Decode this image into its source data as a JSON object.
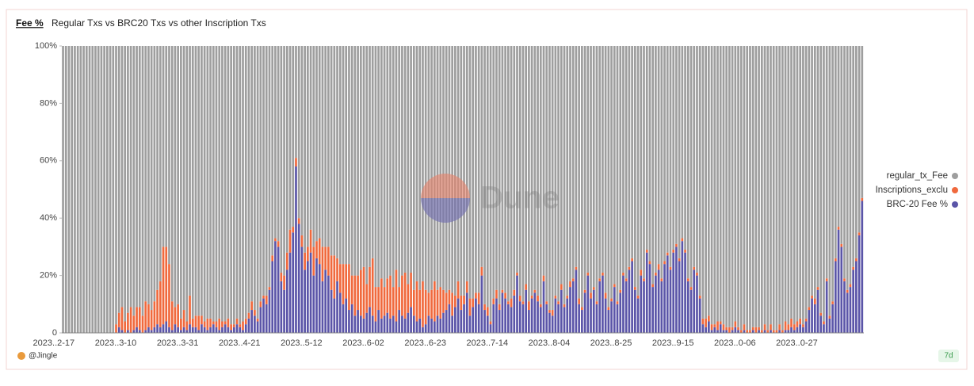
{
  "chart_data": {
    "type": "stacked_bar_100",
    "title": "Fee %",
    "subtitle": "Regular Txs vs BRC20 Txs vs other Inscription Txs",
    "author": "@Jingle",
    "period": "7d",
    "watermark": "Dune",
    "ylim": [
      0,
      100
    ],
    "yticks": [
      0,
      {
        "value": 20,
        "label": "20%"
      },
      {
        "value": 40,
        "label": "40%"
      },
      {
        "value": 60,
        "label": "60%"
      },
      {
        "value": 80,
        "label": "80%"
      },
      {
        "value": 100,
        "label": "100%"
      }
    ],
    "categories": [
      "2023..2-17",
      null,
      null,
      null,
      null,
      null,
      null,
      null,
      null,
      null,
      null,
      null,
      null,
      null,
      null,
      null,
      null,
      null,
      null,
      null,
      null,
      "2023..3-10",
      null,
      null,
      null,
      null,
      null,
      null,
      null,
      null,
      null,
      null,
      null,
      null,
      null,
      null,
      null,
      null,
      null,
      null,
      null,
      null,
      "2023..3-31",
      null,
      null,
      null,
      null,
      null,
      null,
      null,
      null,
      null,
      null,
      null,
      null,
      null,
      null,
      null,
      null,
      null,
      null,
      null,
      null,
      "2023..4-21",
      null,
      null,
      null,
      null,
      null,
      null,
      null,
      null,
      null,
      null,
      null,
      null,
      null,
      null,
      null,
      null,
      null,
      null,
      null,
      null,
      "2023..5-12",
      null,
      null,
      null,
      null,
      null,
      null,
      null,
      null,
      null,
      null,
      null,
      null,
      null,
      null,
      null,
      null,
      null,
      null,
      null,
      null,
      "2023..6-02",
      null,
      null,
      null,
      null,
      null,
      null,
      null,
      null,
      null,
      null,
      null,
      null,
      null,
      null,
      null,
      null,
      null,
      null,
      null,
      null,
      "2023..6-23",
      null,
      null,
      null,
      null,
      null,
      null,
      null,
      null,
      null,
      null,
      null,
      null,
      null,
      null,
      null,
      null,
      null,
      null,
      null,
      null,
      "2023..7-14",
      null,
      null,
      null,
      null,
      null,
      null,
      null,
      null,
      null,
      null,
      null,
      null,
      null,
      null,
      null,
      null,
      null,
      null,
      null,
      null,
      "2023..8-04",
      null,
      null,
      null,
      null,
      null,
      null,
      null,
      null,
      null,
      null,
      null,
      null,
      null,
      null,
      null,
      null,
      null,
      null,
      null,
      null,
      "2023..8-25",
      null,
      null,
      null,
      null,
      null,
      null,
      null,
      null,
      null,
      null,
      null,
      null,
      null,
      null,
      null,
      null,
      null,
      null,
      null,
      null,
      "2023..9-15",
      null,
      null,
      null,
      null,
      null,
      null,
      null,
      null,
      null,
      null,
      null,
      null,
      null,
      null,
      null,
      null,
      null,
      null,
      null,
      null,
      "2023..0-06",
      null,
      null,
      null,
      null,
      null,
      null,
      null,
      null,
      null,
      null,
      null,
      null,
      null,
      null,
      null,
      null,
      null,
      null,
      null,
      null,
      "2023..0-27",
      null,
      null,
      null,
      null,
      null,
      null,
      null,
      null,
      null,
      null,
      null,
      null,
      null,
      null,
      null,
      null,
      null,
      null,
      null
    ],
    "series": [
      {
        "name": "regular_tx_Fee",
        "color": "#9e9e9e",
        "values": [
          100,
          100,
          100,
          100,
          100,
          100,
          100,
          100,
          100,
          100,
          100,
          100,
          100,
          100,
          100,
          100,
          100,
          100,
          97,
          93,
          91,
          96,
          93,
          91,
          94,
          91,
          91,
          94,
          89,
          90,
          92,
          89,
          85,
          82,
          70,
          70,
          76,
          89,
          91,
          90,
          95,
          92,
          96,
          87,
          95,
          94,
          94,
          94,
          96,
          95,
          95,
          96,
          96,
          95,
          96,
          96,
          95,
          97,
          97,
          95,
          97,
          96,
          95,
          93,
          89,
          92,
          95,
          89,
          87,
          87,
          84,
          73,
          67,
          68,
          79,
          80,
          72,
          64,
          63,
          39,
          60,
          66,
          72,
          70,
          64,
          70,
          68,
          67,
          70,
          70,
          70,
          73,
          73,
          74,
          76,
          76,
          76,
          76,
          80,
          80,
          80,
          78,
          77,
          83,
          77,
          74,
          84,
          84,
          81,
          84,
          81,
          80,
          84,
          78,
          84,
          80,
          79,
          83,
          79,
          85,
          82,
          85,
          82,
          85,
          86,
          85,
          82,
          85,
          84,
          85,
          86,
          85,
          86,
          87,
          82,
          87,
          87,
          82,
          88,
          88,
          86,
          86,
          77,
          90,
          91,
          96,
          88,
          85,
          90,
          85,
          86,
          89,
          88,
          85,
          79,
          87,
          89,
          83,
          89,
          87,
          85,
          87,
          90,
          80,
          89,
          92,
          92,
          87,
          89,
          83,
          90,
          87,
          82,
          81,
          77,
          88,
          91,
          85,
          79,
          86,
          84,
          89,
          81,
          79,
          86,
          91,
          88,
          83,
          89,
          85,
          79,
          81,
          77,
          74,
          84,
          87,
          78,
          81,
          71,
          75,
          83,
          79,
          76,
          81,
          75,
          72,
          77,
          71,
          69,
          74,
          67,
          71,
          81,
          84,
          77,
          79,
          87,
          95,
          95,
          94,
          97,
          97,
          96,
          96,
          97,
          98,
          98,
          98,
          96,
          98,
          99,
          97,
          99,
          99,
          98,
          98,
          98,
          99,
          97,
          99,
          97,
          99,
          99,
          97,
          99,
          96,
          97,
          95,
          97,
          96,
          95,
          97,
          95,
          91,
          87,
          88,
          84,
          93,
          96,
          81,
          94,
          89,
          74,
          63,
          69,
          81,
          85,
          83,
          77,
          74,
          65,
          53
        ]
      },
      {
        "name": "Inscriptions_exclu",
        "color": "#f0693d",
        "values": [
          0,
          0,
          0,
          0,
          0,
          0,
          0,
          0,
          0,
          0,
          0,
          0,
          0,
          0,
          0,
          0,
          0,
          0,
          3,
          5,
          8,
          4,
          6,
          9,
          5,
          7,
          8,
          6,
          10,
          8,
          7,
          9,
          12,
          16,
          27,
          26,
          22,
          10,
          6,
          8,
          4,
          6,
          3,
          10,
          3,
          4,
          5,
          3,
          2,
          4,
          3,
          1,
          2,
          4,
          2,
          1,
          3,
          2,
          1,
          2,
          1,
          3,
          2,
          2,
          3,
          2,
          1,
          2,
          1,
          3,
          1,
          2,
          1,
          2,
          3,
          5,
          6,
          8,
          2,
          3,
          2,
          4,
          6,
          5,
          8,
          10,
          6,
          9,
          12,
          8,
          10,
          12,
          15,
          8,
          10,
          14,
          12,
          16,
          10,
          14,
          12,
          16,
          18,
          10,
          14,
          20,
          12,
          8,
          14,
          10,
          12,
          15,
          10,
          18,
          8,
          14,
          16,
          10,
          12,
          9,
          14,
          10,
          16,
          12,
          8,
          10,
          14,
          9,
          11,
          8,
          6,
          5,
          8,
          4,
          6,
          5,
          3,
          4,
          6,
          3,
          2,
          4,
          3,
          2,
          3,
          1,
          2,
          3,
          2,
          1,
          2,
          1,
          3,
          2,
          1,
          2,
          1,
          2,
          3,
          1,
          1,
          2,
          1,
          2,
          1,
          1,
          2,
          1,
          1,
          2,
          1,
          1,
          2,
          1,
          1,
          2,
          1,
          1,
          1,
          2,
          1,
          1,
          1,
          1,
          2,
          1,
          1,
          1,
          1,
          1,
          1,
          1,
          1,
          1,
          1,
          1,
          2,
          1,
          1,
          1,
          1,
          1,
          2,
          1,
          1,
          1,
          1,
          1,
          1,
          1,
          1,
          1,
          1,
          1,
          1,
          1,
          1,
          2,
          3,
          2,
          2,
          1,
          3,
          1,
          2,
          1,
          2,
          1,
          2,
          1,
          1,
          2,
          1,
          1,
          1,
          2,
          1,
          1,
          2,
          1,
          2,
          1,
          1,
          2,
          1,
          3,
          2,
          3,
          2,
          2,
          2,
          1,
          1,
          1,
          1,
          2,
          1,
          1,
          1,
          1,
          1,
          1,
          1,
          1,
          1,
          1,
          1,
          1,
          1,
          1,
          1,
          1
        ]
      },
      {
        "name": "BRC-20 Fee %",
        "color": "#5b55a8",
        "values": [
          0,
          0,
          0,
          0,
          0,
          0,
          0,
          0,
          0,
          0,
          0,
          0,
          0,
          0,
          0,
          0,
          0,
          0,
          0,
          2,
          1,
          0,
          1,
          0,
          1,
          2,
          1,
          0,
          1,
          2,
          1,
          2,
          3,
          2,
          3,
          4,
          2,
          1,
          3,
          2,
          1,
          2,
          1,
          3,
          2,
          2,
          1,
          3,
          2,
          1,
          2,
          3,
          2,
          1,
          2,
          3,
          2,
          1,
          2,
          3,
          2,
          1,
          3,
          5,
          8,
          6,
          4,
          9,
          12,
          10,
          15,
          25,
          32,
          30,
          18,
          15,
          22,
          28,
          35,
          58,
          38,
          30,
          22,
          25,
          28,
          20,
          26,
          24,
          18,
          22,
          20,
          15,
          12,
          18,
          14,
          10,
          12,
          8,
          10,
          6,
          8,
          6,
          5,
          7,
          9,
          6,
          4,
          8,
          5,
          6,
          7,
          5,
          6,
          4,
          8,
          6,
          5,
          7,
          9,
          6,
          4,
          5,
          2,
          3,
          6,
          5,
          4,
          6,
          5,
          7,
          8,
          10,
          6,
          9,
          12,
          8,
          10,
          14,
          6,
          9,
          12,
          10,
          20,
          8,
          6,
          3,
          10,
          12,
          8,
          14,
          12,
          10,
          9,
          13,
          20,
          11,
          10,
          15,
          8,
          12,
          14,
          11,
          9,
          18,
          10,
          7,
          6,
          12,
          10,
          15,
          9,
          12,
          16,
          18,
          22,
          10,
          8,
          14,
          20,
          12,
          15,
          10,
          18,
          20,
          12,
          8,
          11,
          16,
          10,
          14,
          20,
          18,
          22,
          25,
          15,
          12,
          20,
          18,
          28,
          24,
          16,
          20,
          22,
          18,
          24,
          27,
          22,
          28,
          30,
          25,
          32,
          28,
          18,
          15,
          22,
          20,
          12,
          3,
          2,
          4,
          1,
          2,
          1,
          3,
          1,
          1,
          0,
          1,
          2,
          1,
          0,
          1,
          0,
          0,
          1,
          0,
          1,
          0,
          1,
          0,
          1,
          0,
          0,
          1,
          0,
          1,
          1,
          2,
          1,
          2,
          3,
          2,
          4,
          8,
          12,
          10,
          15,
          6,
          3,
          18,
          5,
          10,
          25,
          36,
          30,
          18,
          14,
          16,
          22,
          25,
          34,
          46
        ]
      }
    ]
  }
}
